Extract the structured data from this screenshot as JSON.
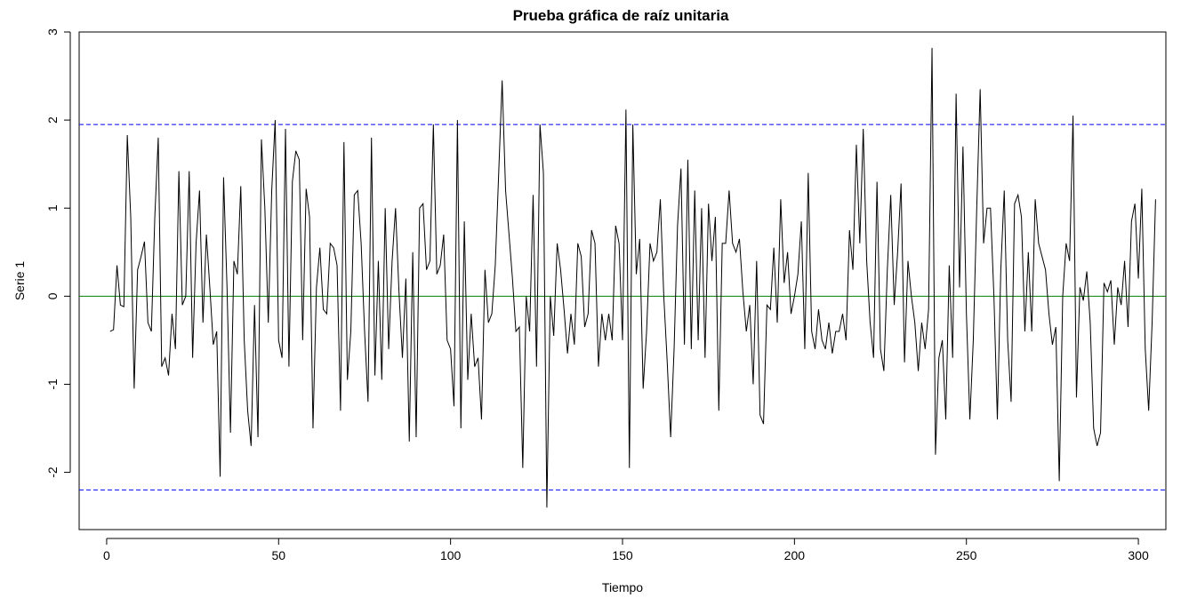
{
  "chart_data": {
    "type": "line",
    "title": "Prueba gráfica de raíz unitaria",
    "xlabel": "Tiempo",
    "ylabel": "Serie 1",
    "xlim": [
      -8,
      308
    ],
    "ylim": [
      -2.65,
      3.0
    ],
    "xticks": [
      "0",
      "50",
      "100",
      "150",
      "200",
      "250",
      "300"
    ],
    "yticks": [
      "-2",
      "-1",
      "0",
      "1",
      "2",
      "3"
    ],
    "colors": {
      "series": "#000000",
      "bounds": "#0000ff",
      "zero": "#008000"
    },
    "reference_lines": [
      {
        "name": "upper",
        "y": 1.95,
        "style": "dashed"
      },
      {
        "name": "lower",
        "y": -2.2,
        "style": "dashed"
      },
      {
        "name": "zero",
        "y": 0,
        "style": "solid"
      }
    ],
    "series": [
      {
        "values": [
          -0.4,
          -0.38,
          0.35,
          -0.1,
          -0.12,
          1.83,
          0.9,
          -1.05,
          0.3,
          0.45,
          0.62,
          -0.3,
          -0.4,
          0.9,
          1.8,
          -0.8,
          -0.7,
          -0.9,
          -0.2,
          -0.6,
          1.42,
          -0.1,
          0.0,
          1.42,
          -0.7,
          0.6,
          1.2,
          -0.3,
          0.7,
          0.1,
          -0.55,
          -0.4,
          -2.05,
          1.35,
          0.1,
          -1.55,
          0.4,
          0.25,
          1.25,
          -0.5,
          -1.3,
          -1.7,
          -0.1,
          -1.6,
          1.78,
          1.0,
          -0.3,
          1.2,
          2.0,
          -0.5,
          -0.7,
          1.9,
          -0.8,
          1.3,
          1.65,
          1.55,
          -0.5,
          1.22,
          0.9,
          -1.5,
          0.1,
          0.55,
          -0.15,
          -0.2,
          0.6,
          0.55,
          0.35,
          -1.3,
          1.75,
          -0.95,
          -0.4,
          1.15,
          1.2,
          0.6,
          -0.4,
          -1.2,
          1.8,
          -0.9,
          0.4,
          -0.95,
          1.0,
          -0.6,
          0.4,
          1.0,
          0.05,
          -0.7,
          0.2,
          -1.65,
          0.5,
          -1.6,
          1.0,
          1.05,
          0.3,
          0.4,
          1.95,
          0.25,
          0.35,
          0.7,
          -0.5,
          -0.6,
          -1.25,
          2.0,
          -1.5,
          0.85,
          -0.95,
          -0.2,
          -0.8,
          -0.7,
          -1.4,
          0.3,
          -0.3,
          -0.2,
          0.35,
          1.4,
          2.45,
          1.2,
          0.7,
          0.2,
          -0.4,
          -0.35,
          -1.95,
          0.0,
          -0.4,
          1.15,
          -0.8,
          1.95,
          1.4,
          -2.4,
          0.0,
          -0.45,
          0.6,
          0.3,
          -0.15,
          -0.65,
          -0.2,
          -0.55,
          0.6,
          0.45,
          -0.35,
          -0.2,
          0.75,
          0.6,
          -0.8,
          -0.2,
          -0.5,
          -0.2,
          -0.5,
          0.8,
          0.6,
          -0.5,
          2.12,
          -1.95,
          1.95,
          0.25,
          0.65,
          -1.05,
          -0.4,
          0.6,
          0.4,
          0.5,
          1.1,
          0.0,
          -0.75,
          -1.6,
          -0.6,
          0.8,
          1.45,
          -0.55,
          1.55,
          -0.6,
          1.2,
          -0.5,
          1.0,
          -0.7,
          1.05,
          0.4,
          0.9,
          -1.3,
          0.6,
          0.6,
          1.2,
          0.6,
          0.5,
          0.65,
          0.05,
          -0.4,
          -0.1,
          -1.0,
          0.4,
          -1.35,
          -1.45,
          -0.1,
          -0.15,
          0.55,
          -0.3,
          1.1,
          0.15,
          0.5,
          -0.2,
          0.0,
          0.25,
          0.85,
          -0.6,
          1.4,
          -0.4,
          -0.6,
          -0.15,
          -0.5,
          -0.6,
          -0.3,
          -0.65,
          -0.4,
          -0.4,
          -0.2,
          -0.5,
          0.75,
          0.3,
          1.72,
          0.6,
          1.9,
          0.4,
          -0.3,
          -0.7,
          1.3,
          -0.6,
          -0.85,
          0.3,
          1.15,
          -0.1,
          0.5,
          1.28,
          -0.75,
          0.4,
          0.0,
          -0.3,
          -0.85,
          -0.3,
          -0.6,
          -0.15,
          2.82,
          -1.8,
          -0.7,
          -0.5,
          -1.4,
          0.35,
          -0.7,
          2.3,
          0.1,
          1.7,
          -0.2,
          -1.4,
          -0.5,
          1.0,
          2.35,
          0.6,
          1.0,
          1.0,
          0.0,
          -1.4,
          0.3,
          1.2,
          -0.5,
          -1.2,
          1.05,
          1.15,
          0.9,
          -0.4,
          0.5,
          -0.4,
          1.1,
          0.6,
          0.45,
          0.3,
          -0.2,
          -0.55,
          -0.35,
          -2.1,
          0.0,
          0.6,
          0.4,
          2.05,
          -1.15,
          0.1,
          -0.05,
          0.28,
          -0.3,
          -1.5,
          -1.7,
          -1.55,
          0.15,
          0.05,
          0.18,
          -0.55,
          0.1,
          -0.1,
          0.4,
          -0.35,
          0.85,
          1.05,
          0.2,
          1.22,
          -0.6,
          -1.3,
          -0.3,
          1.1
        ]
      }
    ]
  }
}
